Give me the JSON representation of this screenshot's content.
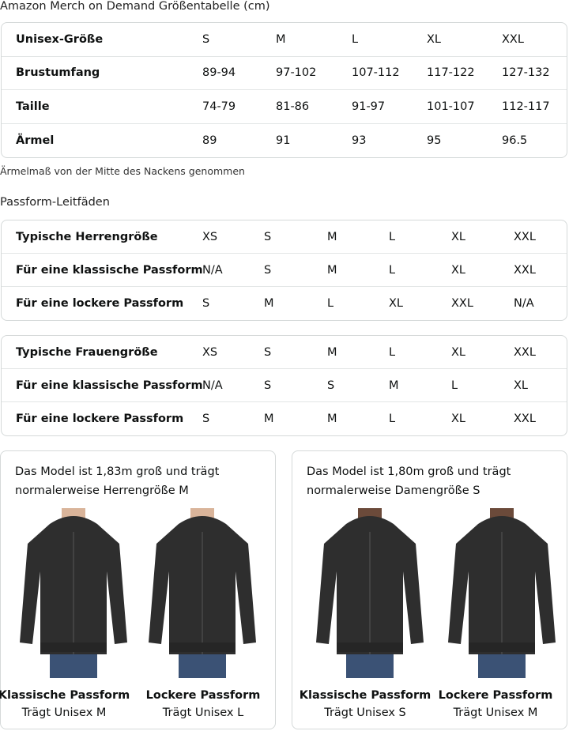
{
  "title": "Amazon Merch on Demand Größentabelle (cm)",
  "size_table": {
    "rows": [
      [
        "Unisex-Größe",
        "S",
        "M",
        "L",
        "XL",
        "XXL"
      ],
      [
        "Brustumfang",
        "89-94",
        "97-102",
        "107-112",
        "117-122",
        "127-132"
      ],
      [
        "Taille",
        "74-79",
        "81-86",
        "91-97",
        "101-107",
        "112-117"
      ],
      [
        "Ärmel",
        "89",
        "91",
        "93",
        "95",
        "96.5"
      ]
    ]
  },
  "note": "Ärmelmaß von der Mitte des Nackens genommen",
  "fit_heading": "Passform-Leitfäden",
  "men_table": {
    "rows": [
      [
        "Typische Herrengröße",
        "XS",
        "S",
        "M",
        "L",
        "XL",
        "XXL"
      ],
      [
        "Für eine klassische Passform",
        "N/A",
        "S",
        "M",
        "L",
        "XL",
        "XXL"
      ],
      [
        "Für eine lockere Passform",
        "S",
        "M",
        "L",
        "XL",
        "XXL",
        "N/A"
      ]
    ]
  },
  "women_table": {
    "rows": [
      [
        "Typische Frauengröße",
        "XS",
        "S",
        "M",
        "L",
        "XL",
        "XXL"
      ],
      [
        "Für eine klassische Passform",
        "N/A",
        "S",
        "S",
        "M",
        "L",
        "XL"
      ],
      [
        "Für eine lockere Passform",
        "S",
        "M",
        "M",
        "L",
        "XL",
        "XXL"
      ]
    ]
  },
  "cards": [
    {
      "desc": "Das Model ist 1,83m groß und trägt normalerweise Herrengröße M",
      "models": [
        {
          "fit": "Klassische Passform",
          "wears": "Trägt Unisex M"
        },
        {
          "fit": "Lockere Passform",
          "wears": "Trägt Unisex L"
        }
      ]
    },
    {
      "desc": "Das Model ist 1,80m groß und trägt normalerweise Damengröße S",
      "models": [
        {
          "fit": "Klassische Passform",
          "wears": "Trägt Unisex S"
        },
        {
          "fit": "Lockere Passform",
          "wears": "Trägt Unisex M"
        }
      ]
    }
  ],
  "colors": {
    "hoodie": "#2e2e2e",
    "jeans": "#3b5275",
    "border": "#d5d9d9"
  }
}
